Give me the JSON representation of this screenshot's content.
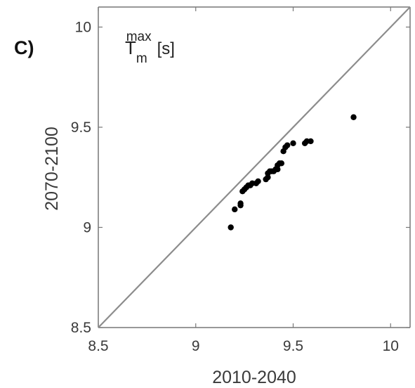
{
  "panel_label": "C)",
  "variable": {
    "base": "T",
    "sub": "m",
    "sup": "max",
    "unit": "[s]"
  },
  "chart_data": {
    "type": "scatter",
    "xlabel": "2010-2040",
    "ylabel": "2070-2100",
    "xlim": [
      8.5,
      10.1
    ],
    "ylim": [
      8.5,
      10.1
    ],
    "xticks": [
      "8.5",
      "9",
      "9.5",
      "10"
    ],
    "yticks": [
      "8.5",
      "9",
      "9.5",
      "10"
    ],
    "grid": false,
    "reference_line": "y = x",
    "colors": {
      "points": "#000000",
      "line": "#8c8c8c",
      "axes": "#777777"
    },
    "points": [
      [
        9.18,
        9.0
      ],
      [
        9.2,
        9.09
      ],
      [
        9.23,
        9.11
      ],
      [
        9.23,
        9.12
      ],
      [
        9.24,
        9.18
      ],
      [
        9.25,
        9.19
      ],
      [
        9.26,
        9.2
      ],
      [
        9.27,
        9.21
      ],
      [
        9.28,
        9.21
      ],
      [
        9.29,
        9.22
      ],
      [
        9.31,
        9.22
      ],
      [
        9.32,
        9.23
      ],
      [
        9.36,
        9.24
      ],
      [
        9.37,
        9.25
      ],
      [
        9.37,
        9.27
      ],
      [
        9.38,
        9.28
      ],
      [
        9.39,
        9.28
      ],
      [
        9.4,
        9.28
      ],
      [
        9.41,
        9.29
      ],
      [
        9.42,
        9.29
      ],
      [
        9.42,
        9.31
      ],
      [
        9.43,
        9.32
      ],
      [
        9.44,
        9.32
      ],
      [
        9.45,
        9.38
      ],
      [
        9.46,
        9.4
      ],
      [
        9.47,
        9.41
      ],
      [
        9.5,
        9.42
      ],
      [
        9.56,
        9.42
      ],
      [
        9.57,
        9.43
      ],
      [
        9.59,
        9.43
      ],
      [
        9.81,
        9.55
      ]
    ]
  }
}
